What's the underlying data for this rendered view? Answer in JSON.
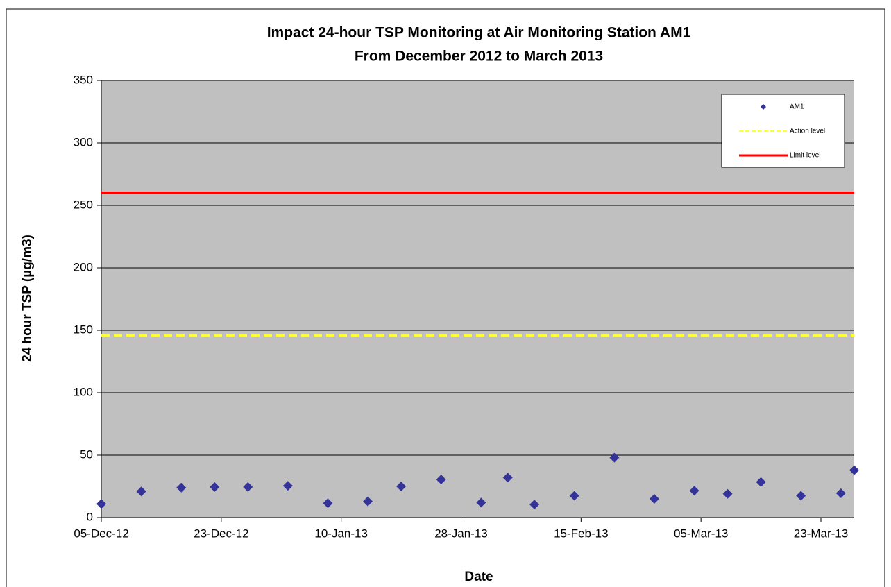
{
  "chart_data": {
    "type": "scatter",
    "title": [
      "Impact 24-hour TSP Monitoring at Air Monitoring Station AM1",
      "From December 2012 to March 2013"
    ],
    "x_label": "Date",
    "y_label": "24 hour TSP (µg/m3)",
    "series": [
      {
        "name": "AM1",
        "color": "#333399",
        "x": [
          "2012-12-05",
          "2012-12-11",
          "2012-12-17",
          "2012-12-22",
          "2012-12-27",
          "2013-01-02",
          "2013-01-08",
          "2013-01-14",
          "2013-01-19",
          "2013-01-25",
          "2013-01-31",
          "2013-02-04",
          "2013-02-08",
          "2013-02-14",
          "2013-02-20",
          "2013-02-26",
          "2013-03-04",
          "2013-03-09",
          "2013-03-14",
          "2013-03-20",
          "2013-03-26",
          "2013-03-28"
        ],
        "values": [
          11,
          21,
          24,
          24.5,
          24.5,
          25.5,
          11.5,
          13,
          25,
          30.5,
          12,
          32,
          10.5,
          17.5,
          48,
          15,
          21.5,
          19,
          28.5,
          17.5,
          19.5,
          38
        ]
      },
      {
        "name": "Action level",
        "color": "#ffff33",
        "type": "hline",
        "dashed": true,
        "value": 146
      },
      {
        "name": "Limit level",
        "color": "#ff0000",
        "type": "hline",
        "dashed": false,
        "value": 260
      }
    ],
    "xlim": [
      "2012-12-05",
      "2013-03-28"
    ],
    "xticks": [
      {
        "value": "2012-12-05",
        "label": "05-Dec-12"
      },
      {
        "value": "2012-12-23",
        "label": "23-Dec-12"
      },
      {
        "value": "2013-01-10",
        "label": "10-Jan-13"
      },
      {
        "value": "2013-01-28",
        "label": "28-Jan-13"
      },
      {
        "value": "2013-02-15",
        "label": "15-Feb-13"
      },
      {
        "value": "2013-03-05",
        "label": "05-Mar-13"
      },
      {
        "value": "2013-03-23",
        "label": "23-Mar-13"
      }
    ],
    "ylim": [
      0,
      350
    ],
    "yticks": [
      0,
      50,
      100,
      150,
      200,
      250,
      300,
      350
    ],
    "grid": true,
    "legend": "top-right",
    "background": "#c0c0c0"
  }
}
